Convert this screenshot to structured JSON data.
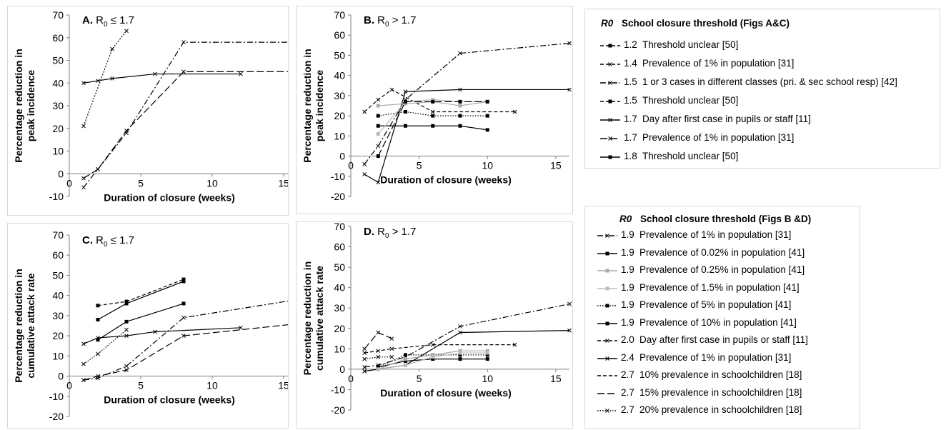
{
  "chart_data": [
    {
      "type": "line",
      "panel_label": "A.",
      "panel_title": "R0 ≤ 1.7",
      "xlabel": "Duration of closure (weeks)",
      "ylabel": "Percentage reduction in peak incidence",
      "ylabel_lines": [
        "Percentage reduction in",
        "peak incidence"
      ],
      "xlim": [
        0,
        16
      ],
      "ylim": [
        -10,
        70
      ],
      "xticks": [
        0,
        5,
        10,
        15
      ],
      "yticks": [
        -10,
        0,
        10,
        20,
        30,
        40,
        50,
        60,
        70
      ],
      "series": [
        {
          "r0": "1.4",
          "style": "dotted-dash",
          "marker": "x",
          "color": "#000000",
          "points": [
            [
              1,
              21
            ],
            [
              3,
              55
            ],
            [
              4,
              63
            ]
          ]
        },
        {
          "r0": "1.5",
          "style": "dashdot",
          "marker": "x",
          "color": "#000000",
          "points": [
            [
              1,
              -6
            ],
            [
              2,
              2
            ],
            [
              4,
              18
            ],
            [
              8,
              58
            ],
            [
              16,
              58
            ]
          ]
        },
        {
          "r0": "1.7",
          "style": "solid",
          "marker": "x",
          "color": "#000000",
          "points": [
            [
              1,
              40
            ],
            [
              2,
              41
            ],
            [
              3,
              42
            ],
            [
              6,
              44
            ],
            [
              12,
              44
            ]
          ]
        },
        {
          "r0": "1.7",
          "style": "longdash",
          "marker": "x",
          "color": "#000000",
          "points": [
            [
              1,
              -2
            ],
            [
              2,
              2
            ],
            [
              4,
              19
            ],
            [
              8,
              45
            ],
            [
              16,
              45
            ]
          ]
        }
      ]
    },
    {
      "type": "line",
      "panel_label": "B.",
      "panel_title": "R0 > 1.7",
      "xlabel": "Duration of closure (weeks)",
      "ylabel": "Percentage reduction in peak incidence",
      "ylabel_lines": [
        "Percentage reduction in",
        "peak incidence"
      ],
      "xlim": [
        0,
        16
      ],
      "ylim": [
        -20,
        70
      ],
      "xticks": [
        0,
        5,
        10,
        15
      ],
      "yticks": [
        -20,
        -10,
        0,
        10,
        20,
        30,
        40,
        50,
        60,
        70
      ],
      "series": [
        {
          "r0": "1.9",
          "style": "dashdot",
          "marker": "x",
          "color": "#000000",
          "points": [
            [
              1,
              -4
            ],
            [
              2,
              5
            ],
            [
              4,
              28
            ],
            [
              8,
              51
            ],
            [
              16,
              56
            ]
          ]
        },
        {
          "r0": "2.0",
          "style": "dashed",
          "marker": "x",
          "color": "#000000",
          "points": [
            [
              1,
              22
            ],
            [
              2,
              28
            ],
            [
              3,
              33
            ],
            [
              6,
              22
            ],
            [
              12,
              22
            ]
          ]
        },
        {
          "r0": "2.4",
          "style": "solid",
          "marker": "x",
          "color": "#000000",
          "points": [
            [
              1,
              -9
            ],
            [
              2,
              -13
            ],
            [
              4,
              32
            ],
            [
              8,
              33
            ],
            [
              16,
              33
            ]
          ]
        },
        {
          "r0": "1.9",
          "style": "solid",
          "marker": "square",
          "color": "#000000",
          "points": [
            [
              2,
              15
            ],
            [
              4,
              15
            ],
            [
              6,
              15
            ],
            [
              8,
              15
            ],
            [
              10,
              13
            ]
          ]
        },
        {
          "r0": "1.9",
          "style": "dotted",
          "marker": "square",
          "color": "#000000",
          "points": [
            [
              2,
              20
            ],
            [
              4,
              22
            ],
            [
              6,
              20
            ],
            [
              8,
              20
            ],
            [
              10,
              20
            ]
          ]
        },
        {
          "r0": "1.9",
          "style": "solid",
          "marker": "square",
          "color": "#aaaaaa",
          "points": [
            [
              2,
              25
            ],
            [
              4,
              26
            ],
            [
              6,
              27
            ],
            [
              8,
              25
            ],
            [
              10,
              27
            ]
          ]
        },
        {
          "r0": "1.9",
          "style": "solid",
          "marker": "square",
          "color": "#bbbbbb",
          "points": [
            [
              2,
              11
            ],
            [
              4,
              27
            ],
            [
              6,
              28
            ],
            [
              8,
              27
            ],
            [
              10,
              27
            ]
          ]
        },
        {
          "r0": "1.9",
          "style": "longdash",
          "marker": "square",
          "color": "#000000",
          "points": [
            [
              2,
              0
            ],
            [
              4,
              27
            ],
            [
              6,
              27
            ],
            [
              8,
              27
            ],
            [
              10,
              27
            ]
          ]
        }
      ]
    },
    {
      "type": "line",
      "panel_label": "C.",
      "panel_title": "R0 ≤ 1.7",
      "xlabel": "Duration of closure (weeks)",
      "ylabel": "Percentage reduction in cumulative attack rate",
      "ylabel_lines": [
        "Percentage reduction in",
        "cumulative attack rate"
      ],
      "xlim": [
        0,
        16
      ],
      "ylim": [
        -20,
        70
      ],
      "xticks": [
        0,
        5,
        10,
        15
      ],
      "yticks": [
        -20,
        -10,
        0,
        10,
        20,
        30,
        40,
        50,
        60,
        70
      ],
      "series": [
        {
          "r0": "1.2",
          "style": "dashed",
          "marker": "square",
          "color": "#000000",
          "points": [
            [
              2,
              35
            ],
            [
              4,
              37
            ],
            [
              8,
              48
            ]
          ]
        },
        {
          "r0": "1.4",
          "style": "dotted",
          "marker": "x",
          "color": "#000000",
          "points": [
            [
              1,
              6
            ],
            [
              2,
              11
            ],
            [
              4,
              23
            ]
          ]
        },
        {
          "r0": "1.5",
          "style": "solid",
          "marker": "square",
          "color": "#000000",
          "points": [
            [
              2,
              28
            ],
            [
              4,
              36
            ],
            [
              8,
              47
            ]
          ]
        },
        {
          "r0": "1.5",
          "style": "dashdot",
          "marker": "x",
          "color": "#000000",
          "points": [
            [
              1,
              -2
            ],
            [
              2,
              -1
            ],
            [
              4,
              5
            ],
            [
              8,
              29
            ],
            [
              16,
              38
            ]
          ]
        },
        {
          "r0": "1.7",
          "style": "solid",
          "marker": "x",
          "color": "#000000",
          "points": [
            [
              1,
              16
            ],
            [
              2,
              19
            ],
            [
              4,
              20
            ],
            [
              6,
              22
            ],
            [
              12,
              24
            ]
          ]
        },
        {
          "r0": "1.7",
          "style": "longdash",
          "marker": "x",
          "color": "#000000",
          "points": [
            [
              1,
              -2
            ],
            [
              2,
              0
            ],
            [
              4,
              3
            ],
            [
              8,
              20
            ],
            [
              16,
              26
            ]
          ]
        },
        {
          "r0": "1.8",
          "style": "solid",
          "marker": "square",
          "color": "#000000",
          "points": [
            [
              2,
              18
            ],
            [
              4,
              27
            ],
            [
              8,
              36
            ]
          ]
        }
      ]
    },
    {
      "type": "line",
      "panel_label": "D.",
      "panel_title": "R0 > 1.7",
      "xlabel": "Duration of closure (weeks)",
      "ylabel": "Percentage reduction in cumulative attack rate",
      "ylabel_lines": [
        "Percentage reduction in",
        "cumulative attack rate"
      ],
      "xlim": [
        0,
        16
      ],
      "ylim": [
        -20,
        70
      ],
      "xticks": [
        0,
        5,
        10,
        15
      ],
      "yticks": [
        -20,
        -10,
        0,
        10,
        20,
        30,
        40,
        50,
        60,
        70
      ],
      "series": [
        {
          "r0": "1.9",
          "style": "dashdot",
          "marker": "x",
          "color": "#000000",
          "points": [
            [
              1,
              1
            ],
            [
              2,
              2
            ],
            [
              4,
              6
            ],
            [
              8,
              21
            ],
            [
              16,
              32
            ]
          ]
        },
        {
          "r0": "2.0",
          "style": "dashed",
          "marker": "x",
          "color": "#000000",
          "points": [
            [
              1,
              8
            ],
            [
              2,
              9
            ],
            [
              3,
              10
            ],
            [
              6,
              12
            ],
            [
              12,
              12
            ]
          ]
        },
        {
          "r0": "2.4",
          "style": "solid",
          "marker": "x",
          "color": "#000000",
          "points": [
            [
              1,
              -1
            ],
            [
              2,
              0
            ],
            [
              4,
              2
            ],
            [
              8,
              18
            ],
            [
              16,
              19
            ]
          ]
        },
        {
          "r0": "2.7",
          "style": "longdash",
          "marker": "x",
          "color": "#000000",
          "points": [
            [
              1,
              10
            ],
            [
              2,
              18
            ],
            [
              3,
              15
            ]
          ]
        },
        {
          "r0": "2.7",
          "style": "dotted",
          "marker": "x",
          "color": "#000000",
          "points": [
            [
              1,
              5
            ],
            [
              2,
              6
            ],
            [
              3,
              6
            ]
          ]
        },
        {
          "r0": "1.9",
          "style": "solid",
          "marker": "square",
          "color": "#000000",
          "points": [
            [
              2,
              1
            ],
            [
              4,
              4
            ],
            [
              6,
              5
            ],
            [
              8,
              5
            ],
            [
              10,
              5
            ]
          ]
        },
        {
          "r0": "1.9",
          "style": "dotted",
          "marker": "square",
          "color": "#000000",
          "points": [
            [
              2,
              1
            ],
            [
              4,
              7
            ],
            [
              6,
              7
            ],
            [
              8,
              7
            ],
            [
              10,
              7
            ]
          ]
        },
        {
          "r0": "1.9",
          "style": "solid",
          "marker": "square",
          "color": "#aaaaaa",
          "points": [
            [
              2,
              0
            ],
            [
              4,
              5
            ],
            [
              6,
              7
            ],
            [
              8,
              9
            ],
            [
              10,
              9
            ]
          ]
        },
        {
          "r0": "1.9",
          "style": "solid",
          "marker": "square",
          "color": "#bbbbbb",
          "points": [
            [
              2,
              0
            ],
            [
              4,
              2
            ],
            [
              6,
              6
            ],
            [
              8,
              8
            ],
            [
              10,
              8
            ]
          ]
        }
      ]
    }
  ],
  "legend_top": {
    "heading_r0": "R0",
    "heading_text": "School closure threshold (Figs A&C)",
    "items": [
      {
        "r0": "1.2",
        "label": "Threshold unclear [50]",
        "style": "dashed",
        "marker": "square",
        "color": "#000000"
      },
      {
        "r0": "1.4",
        "label": "Prevalence of 1% in population [31]",
        "style": "dashed",
        "marker": "x",
        "color": "#000000"
      },
      {
        "r0": "1.5",
        "label": "1 or 3 cases in different classes (pri. & sec school resp) [42]",
        "style": "dashdot",
        "marker": "x",
        "color": "#000000"
      },
      {
        "r0": "1.5",
        "label": "Threshold unclear [50]",
        "style": "dashed",
        "marker": "square",
        "color": "#000000"
      },
      {
        "r0": "1.7",
        "label": "Day after first case in pupils or staff [11]",
        "style": "solid",
        "marker": "x",
        "color": "#000000"
      },
      {
        "r0": "1.7",
        "label": "Prevalence of 1% in population [31]",
        "style": "longdash",
        "marker": "x",
        "color": "#000000"
      },
      {
        "r0": "1.8",
        "label": "Threshold unclear [50]",
        "style": "solid",
        "marker": "square",
        "color": "#000000"
      }
    ]
  },
  "legend_bottom": {
    "heading_r0": "R0",
    "heading_text": "School closure threshold (Figs B &D)",
    "items": [
      {
        "r0": "1.9",
        "label": "Prevalence of 1% in population [31]",
        "style": "dashdot",
        "marker": "x",
        "color": "#000000"
      },
      {
        "r0": "1.9",
        "label": "Prevalence of 0.02% in population [41]",
        "style": "solid",
        "marker": "square",
        "color": "#000000"
      },
      {
        "r0": "1.9",
        "label": "Prevalence of 0.25% in population [41]",
        "style": "solid",
        "marker": "square",
        "color": "#aaaaaa"
      },
      {
        "r0": "1.9",
        "label": "Prevalence of 1.5% in population [41]",
        "style": "solid",
        "marker": "square",
        "color": "#bbbbbb"
      },
      {
        "r0": "1.9",
        "label": "Prevalence of 5% in population [41]",
        "style": "dotted",
        "marker": "square",
        "color": "#000000"
      },
      {
        "r0": "1.9",
        "label": "Prevalence of 10% in population [41]",
        "style": "solid",
        "marker": "square",
        "color": "#000000"
      },
      {
        "r0": "2.0",
        "label": "Day after first case in pupils or staff [11]",
        "style": "dashed",
        "marker": "x",
        "color": "#000000"
      },
      {
        "r0": "2.4",
        "label": "Prevalence of 1% in population [31]",
        "style": "solid",
        "marker": "x",
        "color": "#000000"
      },
      {
        "r0": "2.7",
        "label": "10% prevalence in schoolchildren [18]",
        "style": "dashed",
        "marker": "none",
        "color": "#000000"
      },
      {
        "r0": "2.7",
        "label": "15% prevalence in schoolchildren [18]",
        "style": "longdash",
        "marker": "none",
        "color": "#000000"
      },
      {
        "r0": "2.7",
        "label": "20% prevalence in schoolchildren [18]",
        "style": "dotted",
        "marker": "x",
        "color": "#000000"
      }
    ]
  }
}
